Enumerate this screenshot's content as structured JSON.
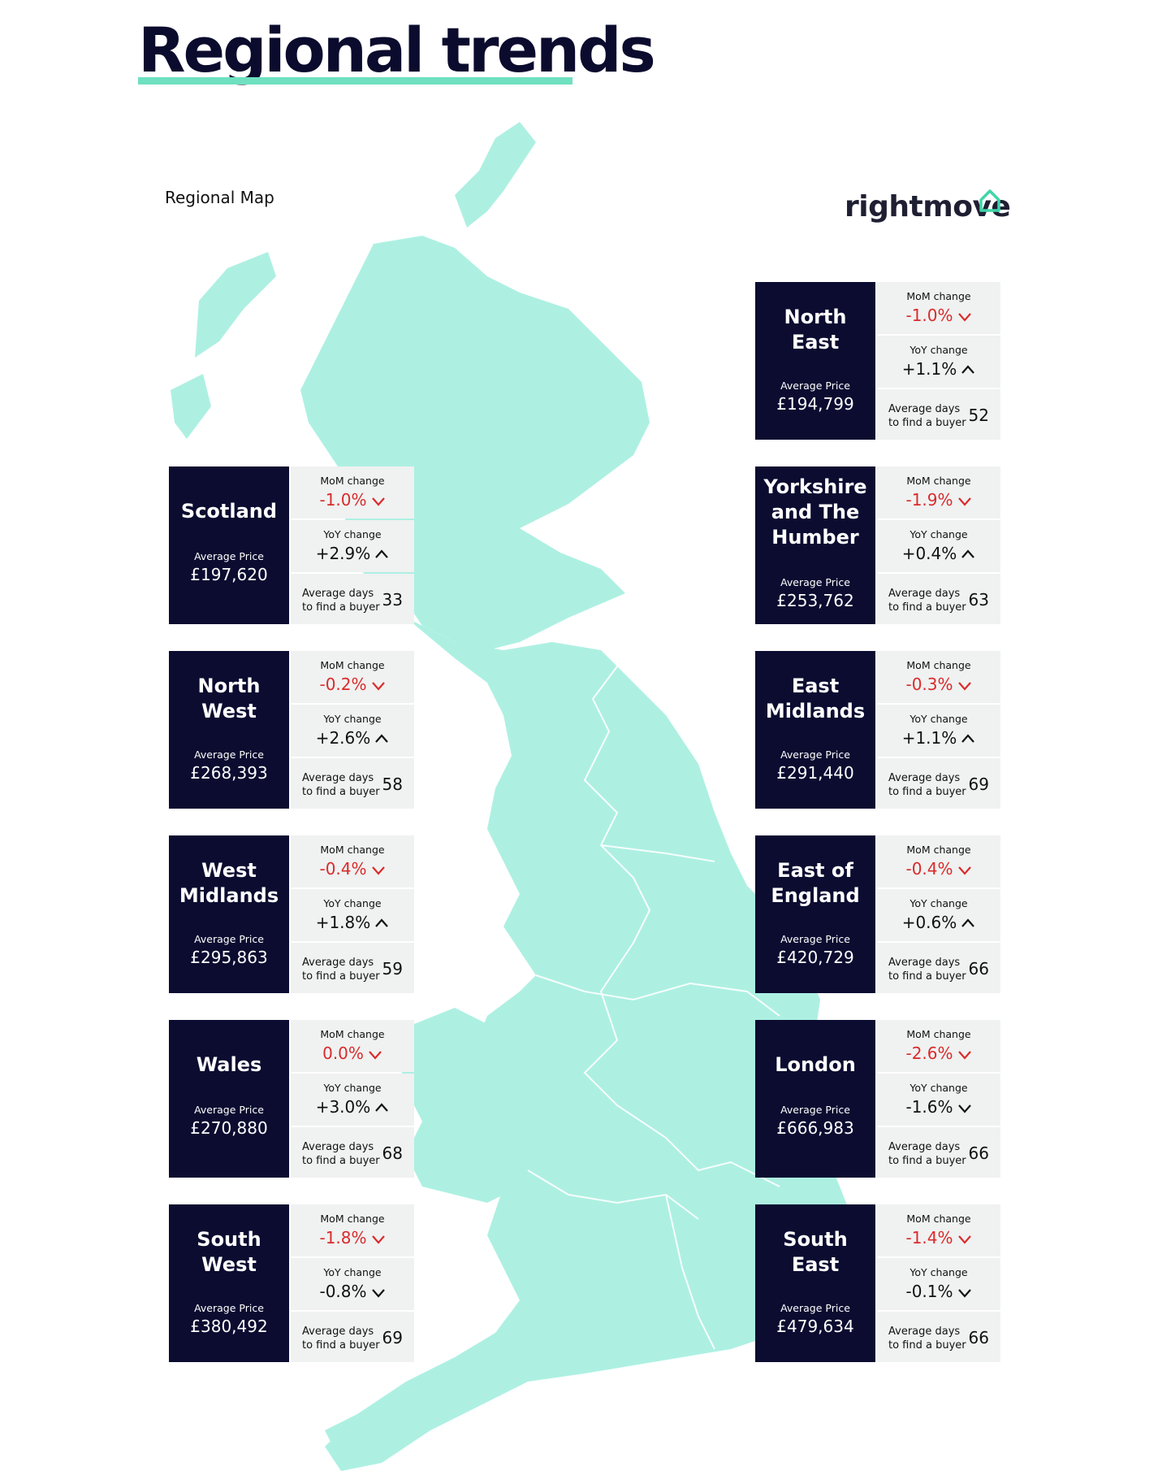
{
  "title": "Regional trends",
  "map_label": "Regional Map",
  "brand": "rightmove",
  "icons": {
    "up": "chevron-up-icon",
    "down": "chevron-down-icon",
    "brand": "house-outline-icon"
  },
  "colors": {
    "map": "#adf0e2",
    "panel": "#0b0c30",
    "accent": "#6fe0c0",
    "negative": "#d92b2b",
    "stat_bg": "#f0f1f1"
  },
  "regions": [
    {
      "name": "North\nEast",
      "avg_label": "Average Price",
      "avg_price": "£194,799",
      "mom_label": "MoM change",
      "mom": "-1.0%",
      "mom_dir": "down",
      "yoy_label": "YoY change",
      "yoy": "+1.1%",
      "yoy_dir": "up",
      "days_label": "Average days\nto find a buyer",
      "days": "52"
    },
    {
      "name": "Scotland",
      "avg_label": "Average Price",
      "avg_price": "£197,620",
      "mom_label": "MoM change",
      "mom": "-1.0%",
      "mom_dir": "down",
      "yoy_label": "YoY change",
      "yoy": "+2.9%",
      "yoy_dir": "up",
      "days_label": "Average days\nto find a buyer",
      "days": "33"
    },
    {
      "name": "Yorkshire\nand The\nHumber",
      "avg_label": "Average Price",
      "avg_price": "£253,762",
      "mom_label": "MoM change",
      "mom": "-1.9%",
      "mom_dir": "down",
      "yoy_label": "YoY change",
      "yoy": "+0.4%",
      "yoy_dir": "up",
      "days_label": "Average days\nto find a buyer",
      "days": "63"
    },
    {
      "name": "North\nWest",
      "avg_label": "Average Price",
      "avg_price": "£268,393",
      "mom_label": "MoM change",
      "mom": "-0.2%",
      "mom_dir": "down",
      "yoy_label": "YoY change",
      "yoy": "+2.6%",
      "yoy_dir": "up",
      "days_label": "Average days\nto find a buyer",
      "days": "58"
    },
    {
      "name": "East\nMidlands",
      "avg_label": "Average Price",
      "avg_price": "£291,440",
      "mom_label": "MoM change",
      "mom": "-0.3%",
      "mom_dir": "down",
      "yoy_label": "YoY change",
      "yoy": "+1.1%",
      "yoy_dir": "up",
      "days_label": "Average days\nto find a buyer",
      "days": "69"
    },
    {
      "name": "West\nMidlands",
      "avg_label": "Average Price",
      "avg_price": "£295,863",
      "mom_label": "MoM change",
      "mom": "-0.4%",
      "mom_dir": "down",
      "yoy_label": "YoY change",
      "yoy": "+1.8%",
      "yoy_dir": "up",
      "days_label": "Average days\nto find a buyer",
      "days": "59"
    },
    {
      "name": "East of\nEngland",
      "avg_label": "Average Price",
      "avg_price": "£420,729",
      "mom_label": "MoM change",
      "mom": "-0.4%",
      "mom_dir": "down",
      "yoy_label": "YoY change",
      "yoy": "+0.6%",
      "yoy_dir": "up",
      "days_label": "Average days\nto find a buyer",
      "days": "66"
    },
    {
      "name": "Wales",
      "avg_label": "Average Price",
      "avg_price": "£270,880",
      "mom_label": "MoM change",
      "mom": "0.0%",
      "mom_dir": "down",
      "yoy_label": "YoY change",
      "yoy": "+3.0%",
      "yoy_dir": "up",
      "days_label": "Average days\nto find a buyer",
      "days": "68"
    },
    {
      "name": "London",
      "avg_label": "Average Price",
      "avg_price": "£666,983",
      "mom_label": "MoM change",
      "mom": "-2.6%",
      "mom_dir": "down",
      "yoy_label": "YoY change",
      "yoy": "-1.6%",
      "yoy_dir": "down",
      "days_label": "Average days\nto find a buyer",
      "days": "66"
    },
    {
      "name": "South\nWest",
      "avg_label": "Average Price",
      "avg_price": "£380,492",
      "mom_label": "MoM change",
      "mom": "-1.8%",
      "mom_dir": "down",
      "yoy_label": "YoY change",
      "yoy": "-0.8%",
      "yoy_dir": "down",
      "days_label": "Average days\nto find a buyer",
      "days": "69"
    },
    {
      "name": "South\nEast",
      "avg_label": "Average Price",
      "avg_price": "£479,634",
      "mom_label": "MoM change",
      "mom": "-1.4%",
      "mom_dir": "down",
      "yoy_label": "YoY change",
      "yoy": "-0.1%",
      "yoy_dir": "down",
      "days_label": "Average days\nto find a buyer",
      "days": "66"
    }
  ]
}
